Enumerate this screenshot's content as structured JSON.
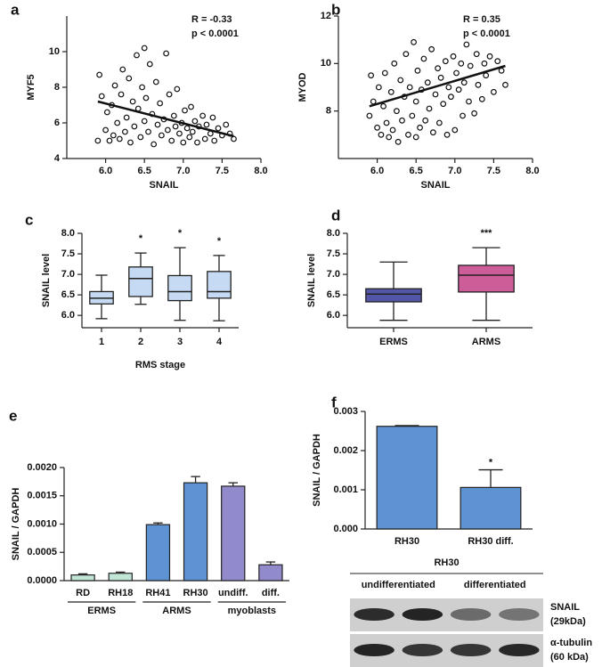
{
  "chart_data": [
    {
      "type": "scatter",
      "panel": "a",
      "x_label": "SNAIL",
      "y_label": "MYF5",
      "annotation": [
        "R = -0.33",
        "p < 0.0001"
      ],
      "xlim": [
        5.5,
        8.0
      ],
      "xticks": [
        {
          "value": 6,
          "label": "6.0"
        },
        {
          "value": 6.5,
          "label": "6.5"
        },
        {
          "value": 7,
          "label": "7.0"
        },
        {
          "value": 7.5,
          "label": "7.5"
        },
        {
          "value": 8,
          "label": "8.0"
        }
      ],
      "ylim": [
        4,
        12
      ],
      "yticks": [
        4,
        6,
        8,
        10
      ],
      "x": [
        5.9,
        5.92,
        5.95,
        6.0,
        6.02,
        6.05,
        6.08,
        6.1,
        6.12,
        6.15,
        6.18,
        6.2,
        6.22,
        6.25,
        6.27,
        6.3,
        6.32,
        6.35,
        6.37,
        6.4,
        6.42,
        6.45,
        6.47,
        6.5,
        6.5,
        6.52,
        6.55,
        6.57,
        6.6,
        6.62,
        6.65,
        6.67,
        6.7,
        6.72,
        6.75,
        6.78,
        6.8,
        6.82,
        6.85,
        6.88,
        6.9,
        6.92,
        6.95,
        6.98,
        7.0,
        7.02,
        7.05,
        7.08,
        7.1,
        7.12,
        7.15,
        7.18,
        7.2,
        7.25,
        7.28,
        7.3,
        7.35,
        7.38,
        7.4,
        7.45,
        7.5,
        7.55,
        7.6,
        7.65
      ],
      "values": [
        5.0,
        8.7,
        7.5,
        5.6,
        6.6,
        5.0,
        7.0,
        5.3,
        8.1,
        6.0,
        5.1,
        7.6,
        9.0,
        5.5,
        6.3,
        8.5,
        4.9,
        7.2,
        5.8,
        9.8,
        6.8,
        5.2,
        8.0,
        10.2,
        6.1,
        7.4,
        5.5,
        9.3,
        6.5,
        4.8,
        8.3,
        5.9,
        7.1,
        5.3,
        6.2,
        9.9,
        5.6,
        7.6,
        5.0,
        6.4,
        5.8,
        7.9,
        5.4,
        6.0,
        4.9,
        6.7,
        5.7,
        5.2,
        6.9,
        5.5,
        6.1,
        4.9,
        5.8,
        6.4,
        5.1,
        5.9,
        5.4,
        6.3,
        5.0,
        5.7,
        5.3,
        5.9,
        5.4,
        5.1
      ],
      "fit_x": [
        5.9,
        7.65
      ],
      "fit_y": [
        7.2,
        5.25
      ]
    },
    {
      "type": "scatter",
      "panel": "b",
      "x_label": "SNAIL",
      "y_label": "MYOD",
      "annotation": [
        "R = 0.35",
        "p < 0.0001"
      ],
      "xlim": [
        5.5,
        8.0
      ],
      "xticks": [
        {
          "value": 6,
          "label": "6.0"
        },
        {
          "value": 6.5,
          "label": "6.5"
        },
        {
          "value": 7,
          "label": "7.0"
        },
        {
          "value": 7.5,
          "label": "7.5"
        },
        {
          "value": 8,
          "label": "8.0"
        }
      ],
      "ylim": [
        6,
        12
      ],
      "yticks": [
        8,
        10,
        12
      ],
      "x": [
        5.9,
        5.92,
        5.95,
        6.0,
        6.02,
        6.05,
        6.08,
        6.1,
        6.12,
        6.15,
        6.18,
        6.2,
        6.22,
        6.25,
        6.27,
        6.3,
        6.32,
        6.35,
        6.37,
        6.4,
        6.42,
        6.45,
        6.47,
        6.5,
        6.5,
        6.52,
        6.55,
        6.57,
        6.6,
        6.62,
        6.65,
        6.67,
        6.7,
        6.72,
        6.75,
        6.78,
        6.8,
        6.82,
        6.85,
        6.88,
        6.9,
        6.92,
        6.95,
        6.98,
        7.0,
        7.02,
        7.05,
        7.08,
        7.1,
        7.12,
        7.15,
        7.18,
        7.2,
        7.25,
        7.28,
        7.3,
        7.35,
        7.38,
        7.4,
        7.45,
        7.5,
        7.55,
        7.6,
        7.65
      ],
      "values": [
        7.8,
        9.5,
        8.4,
        7.3,
        9.0,
        7.0,
        8.2,
        9.6,
        7.5,
        6.9,
        8.8,
        7.2,
        10.0,
        8.0,
        6.7,
        9.3,
        7.6,
        8.6,
        10.4,
        7.0,
        9.0,
        7.8,
        10.9,
        8.4,
        6.9,
        9.7,
        7.3,
        8.9,
        10.2,
        7.6,
        9.2,
        8.1,
        10.6,
        7.1,
        8.7,
        9.8,
        7.5,
        9.4,
        8.3,
        10.1,
        7.0,
        9.0,
        8.6,
        10.3,
        7.2,
        9.6,
        8.9,
        10.0,
        7.8,
        9.2,
        10.8,
        8.4,
        9.9,
        7.9,
        10.4,
        9.1,
        8.5,
        10.0,
        9.5,
        10.3,
        8.8,
        10.1,
        9.7,
        9.1
      ],
      "fit_x": [
        5.9,
        7.65
      ],
      "fit_y": [
        8.2,
        9.9
      ]
    },
    {
      "type": "box",
      "panel": "c",
      "x_label": "RMS stage",
      "y_label": "SNAIL level",
      "color": "#c6dbf3",
      "ylim": [
        5.7,
        8.0
      ],
      "yticks": [
        {
          "value": 6,
          "label": "6.0"
        },
        {
          "value": 6.5,
          "label": "6.5"
        },
        {
          "value": 7,
          "label": "7.0"
        },
        {
          "value": 7.5,
          "label": "7.5"
        },
        {
          "value": 8,
          "label": "8.0"
        }
      ],
      "categories": [
        "1",
        "2",
        "3",
        "4"
      ],
      "min": [
        5.92,
        6.27,
        5.88,
        5.87
      ],
      "q1": [
        6.28,
        6.46,
        6.36,
        6.42
      ],
      "median": [
        6.42,
        6.9,
        6.58,
        6.58
      ],
      "q3": [
        6.58,
        7.18,
        6.97,
        7.07
      ],
      "max": [
        6.98,
        7.52,
        7.65,
        7.46
      ],
      "annotations": [
        null,
        "*",
        "*",
        "*"
      ]
    },
    {
      "type": "box",
      "panel": "d",
      "y_label": "SNAIL level",
      "colors": [
        "#5355a6",
        "#cd5d98"
      ],
      "ylim": [
        5.7,
        8.0
      ],
      "yticks": [
        {
          "value": 6,
          "label": "6.0"
        },
        {
          "value": 6.5,
          "label": "6.5"
        },
        {
          "value": 7,
          "label": "7.0"
        },
        {
          "value": 7.5,
          "label": "7.5"
        },
        {
          "value": 8,
          "label": "8.0"
        }
      ],
      "categories": [
        "ERMS",
        "ARMS"
      ],
      "min": [
        5.88,
        5.88
      ],
      "q1": [
        6.33,
        6.57
      ],
      "median": [
        6.52,
        6.98
      ],
      "q3": [
        6.65,
        7.22
      ],
      "max": [
        7.3,
        7.65
      ],
      "annotations": [
        null,
        "***"
      ]
    },
    {
      "type": "bar",
      "panel": "e",
      "y_label": "SNAIL / GAPDH",
      "ylim": [
        0,
        0.002
      ],
      "yticks": [
        {
          "value": 0,
          "label": "0.0000"
        },
        {
          "value": 0.0005,
          "label": "0.0005"
        },
        {
          "value": 0.001,
          "label": "0.0010"
        },
        {
          "value": 0.0015,
          "label": "0.0015"
        },
        {
          "value": 0.002,
          "label": "0.0020"
        }
      ],
      "categories": [
        "RD",
        "RH18",
        "RH41",
        "RH30",
        "undiff.",
        "diff."
      ],
      "groups": [
        "ERMS",
        "ERMS",
        "ARMS",
        "ARMS",
        "myoblasts",
        "myoblasts"
      ],
      "colors": [
        "#c2e6d6",
        "#c2e6d6",
        "#5d93d3",
        "#5d93d3",
        "#918bcb",
        "#918bcb"
      ],
      "values": [
        0.0001,
        0.00013,
        0.00099,
        0.00173,
        0.00167,
        0.00028
      ],
      "errors": [
        2e-05,
        2e-05,
        3e-05,
        0.00011,
        6e-05,
        5e-05
      ],
      "annotations": [
        null,
        null,
        null,
        null,
        null,
        null
      ]
    },
    {
      "type": "bar",
      "panel": "f",
      "y_label": "SNAIL / GAPDH",
      "ylim": [
        0,
        0.003
      ],
      "yticks": [
        {
          "value": 0,
          "label": "0.000"
        },
        {
          "value": 0.001,
          "label": "0.001"
        },
        {
          "value": 0.002,
          "label": "0.002"
        },
        {
          "value": 0.003,
          "label": "0.003"
        }
      ],
      "categories": [
        "RH30",
        "RH30 diff."
      ],
      "colors": [
        "#5d93d3",
        "#5d93d3"
      ],
      "values": [
        0.00262,
        0.00106
      ],
      "errors": [
        2e-05,
        0.00045
      ],
      "annotations": [
        null,
        "*"
      ]
    }
  ],
  "blot": {
    "title": "RH30",
    "lanes": [
      "undifferentiated",
      "differentiated"
    ],
    "rows": [
      [
        "SNAIL",
        "(29kDa)"
      ],
      [
        "α-tubulin",
        "(60 kDa)"
      ]
    ]
  }
}
